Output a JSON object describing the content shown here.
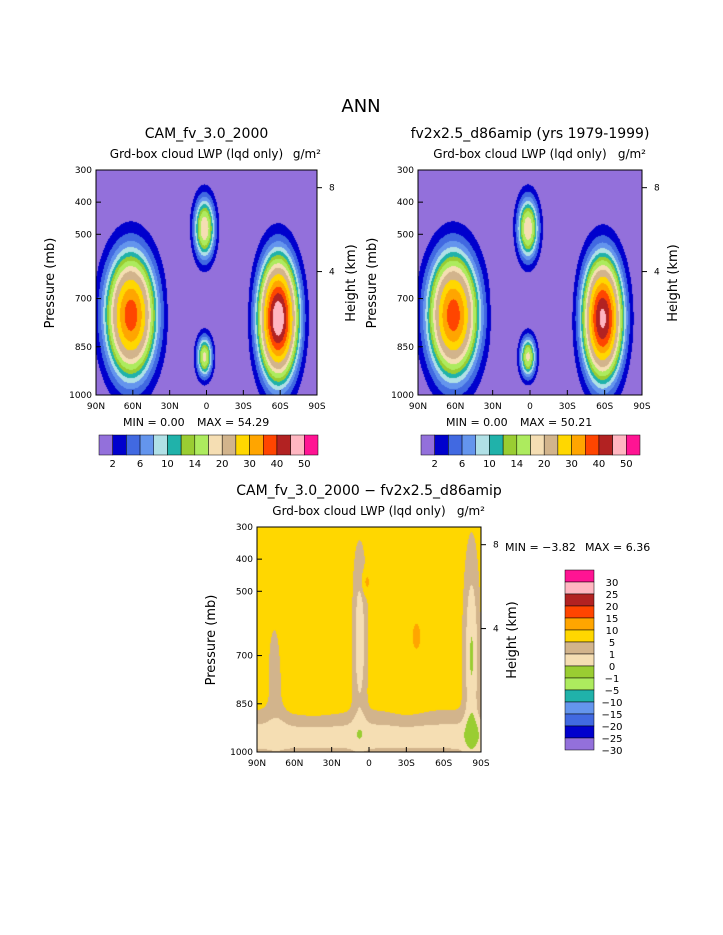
{
  "page_title": "ANN",
  "colors": {
    "absolute": [
      "#9370DB",
      "#0000CD",
      "#4169E1",
      "#6495ED",
      "#B0E0E6",
      "#20B2AA",
      "#9ACD32",
      "#ADEB5E",
      "#F5DEB3",
      "#D2B48C",
      "#FFD700",
      "#FFA500",
      "#FF4500",
      "#B22222",
      "#FFB6C1",
      "#FF1493"
    ],
    "difference": [
      "#9370DB",
      "#0000CD",
      "#4169E1",
      "#6495ED",
      "#20B2AA",
      "#ADEB5E",
      "#9ACD32",
      "#F5DEB3",
      "#D2B48C",
      "#FFD700",
      "#FFA500",
      "#FF4500",
      "#B22222",
      "#FFB6C1",
      "#FF1493"
    ]
  },
  "chart_data": [
    {
      "type": "contour",
      "title": "CAM_fv_3.0_2000",
      "subtitle": "Grd-box cloud LWP (lqd only)",
      "units": "g/m²",
      "xlabel": "",
      "ylabel": "Pressure (mb)",
      "ylabel_right": "Height (km)",
      "x_ticks": [
        "90N",
        "60N",
        "30N",
        "0",
        "30S",
        "60S",
        "90S"
      ],
      "y_ticks": [
        "300",
        "400",
        "500",
        "700",
        "850",
        "1000"
      ],
      "height_ticks": [
        "8",
        "4"
      ],
      "ylim": [
        1000,
        300
      ],
      "min_text": "MIN =    0.00",
      "max_text": "MAX =   54.29",
      "colorbar_labels": [
        "2",
        "6",
        "10",
        "14",
        "20",
        "30",
        "40",
        "50"
      ],
      "maxima": [
        {
          "lat": -58,
          "p": 760,
          "value": 54.29
        },
        {
          "lat": 62,
          "p": 730,
          "value": 38
        }
      ]
    },
    {
      "type": "contour",
      "title": "fv2x2.5_d86amip (yrs 1979-1999)",
      "subtitle": "Grd-box cloud LWP (lqd only)",
      "units": "g/m²",
      "xlabel": "",
      "ylabel": "Pressure (mb)",
      "ylabel_right": "Height (km)",
      "x_ticks": [
        "90N",
        "60N",
        "30N",
        "0",
        "30S",
        "60S",
        "90S"
      ],
      "y_ticks": [
        "300",
        "400",
        "500",
        "700",
        "850",
        "1000"
      ],
      "height_ticks": [
        "8",
        "4"
      ],
      "ylim": [
        1000,
        300
      ],
      "min_text": "MIN =    0.00",
      "max_text": "MAX =   50.21",
      "colorbar_labels": [
        "2",
        "6",
        "10",
        "14",
        "20",
        "30",
        "40",
        "50"
      ],
      "maxima": [
        {
          "lat": -58,
          "p": 760,
          "value": 50.21
        },
        {
          "lat": 62,
          "p": 730,
          "value": 36
        }
      ]
    },
    {
      "type": "contour",
      "title": "CAM_fv_3.0_2000 − fv2x2.5_d86amip",
      "subtitle": "Grd-box cloud LWP (lqd only)",
      "units": "g/m²",
      "xlabel": "",
      "ylabel": "Pressure (mb)",
      "ylabel_right": "Height (km)",
      "x_ticks": [
        "90N",
        "60N",
        "30N",
        "0",
        "30S",
        "60S",
        "90S"
      ],
      "y_ticks": [
        "300",
        "400",
        "500",
        "700",
        "850",
        "1000"
      ],
      "height_ticks": [
        "8",
        "4"
      ],
      "ylim": [
        1000,
        300
      ],
      "min_text": "MIN =    −3.82",
      "max_text": "MAX =    6.36",
      "colorbar_labels": [
        "30",
        "25",
        "20",
        "15",
        "10",
        "5",
        "1",
        "0",
        "−1",
        "−5",
        "−10",
        "−15",
        "−20",
        "−25",
        "−30"
      ]
    }
  ]
}
